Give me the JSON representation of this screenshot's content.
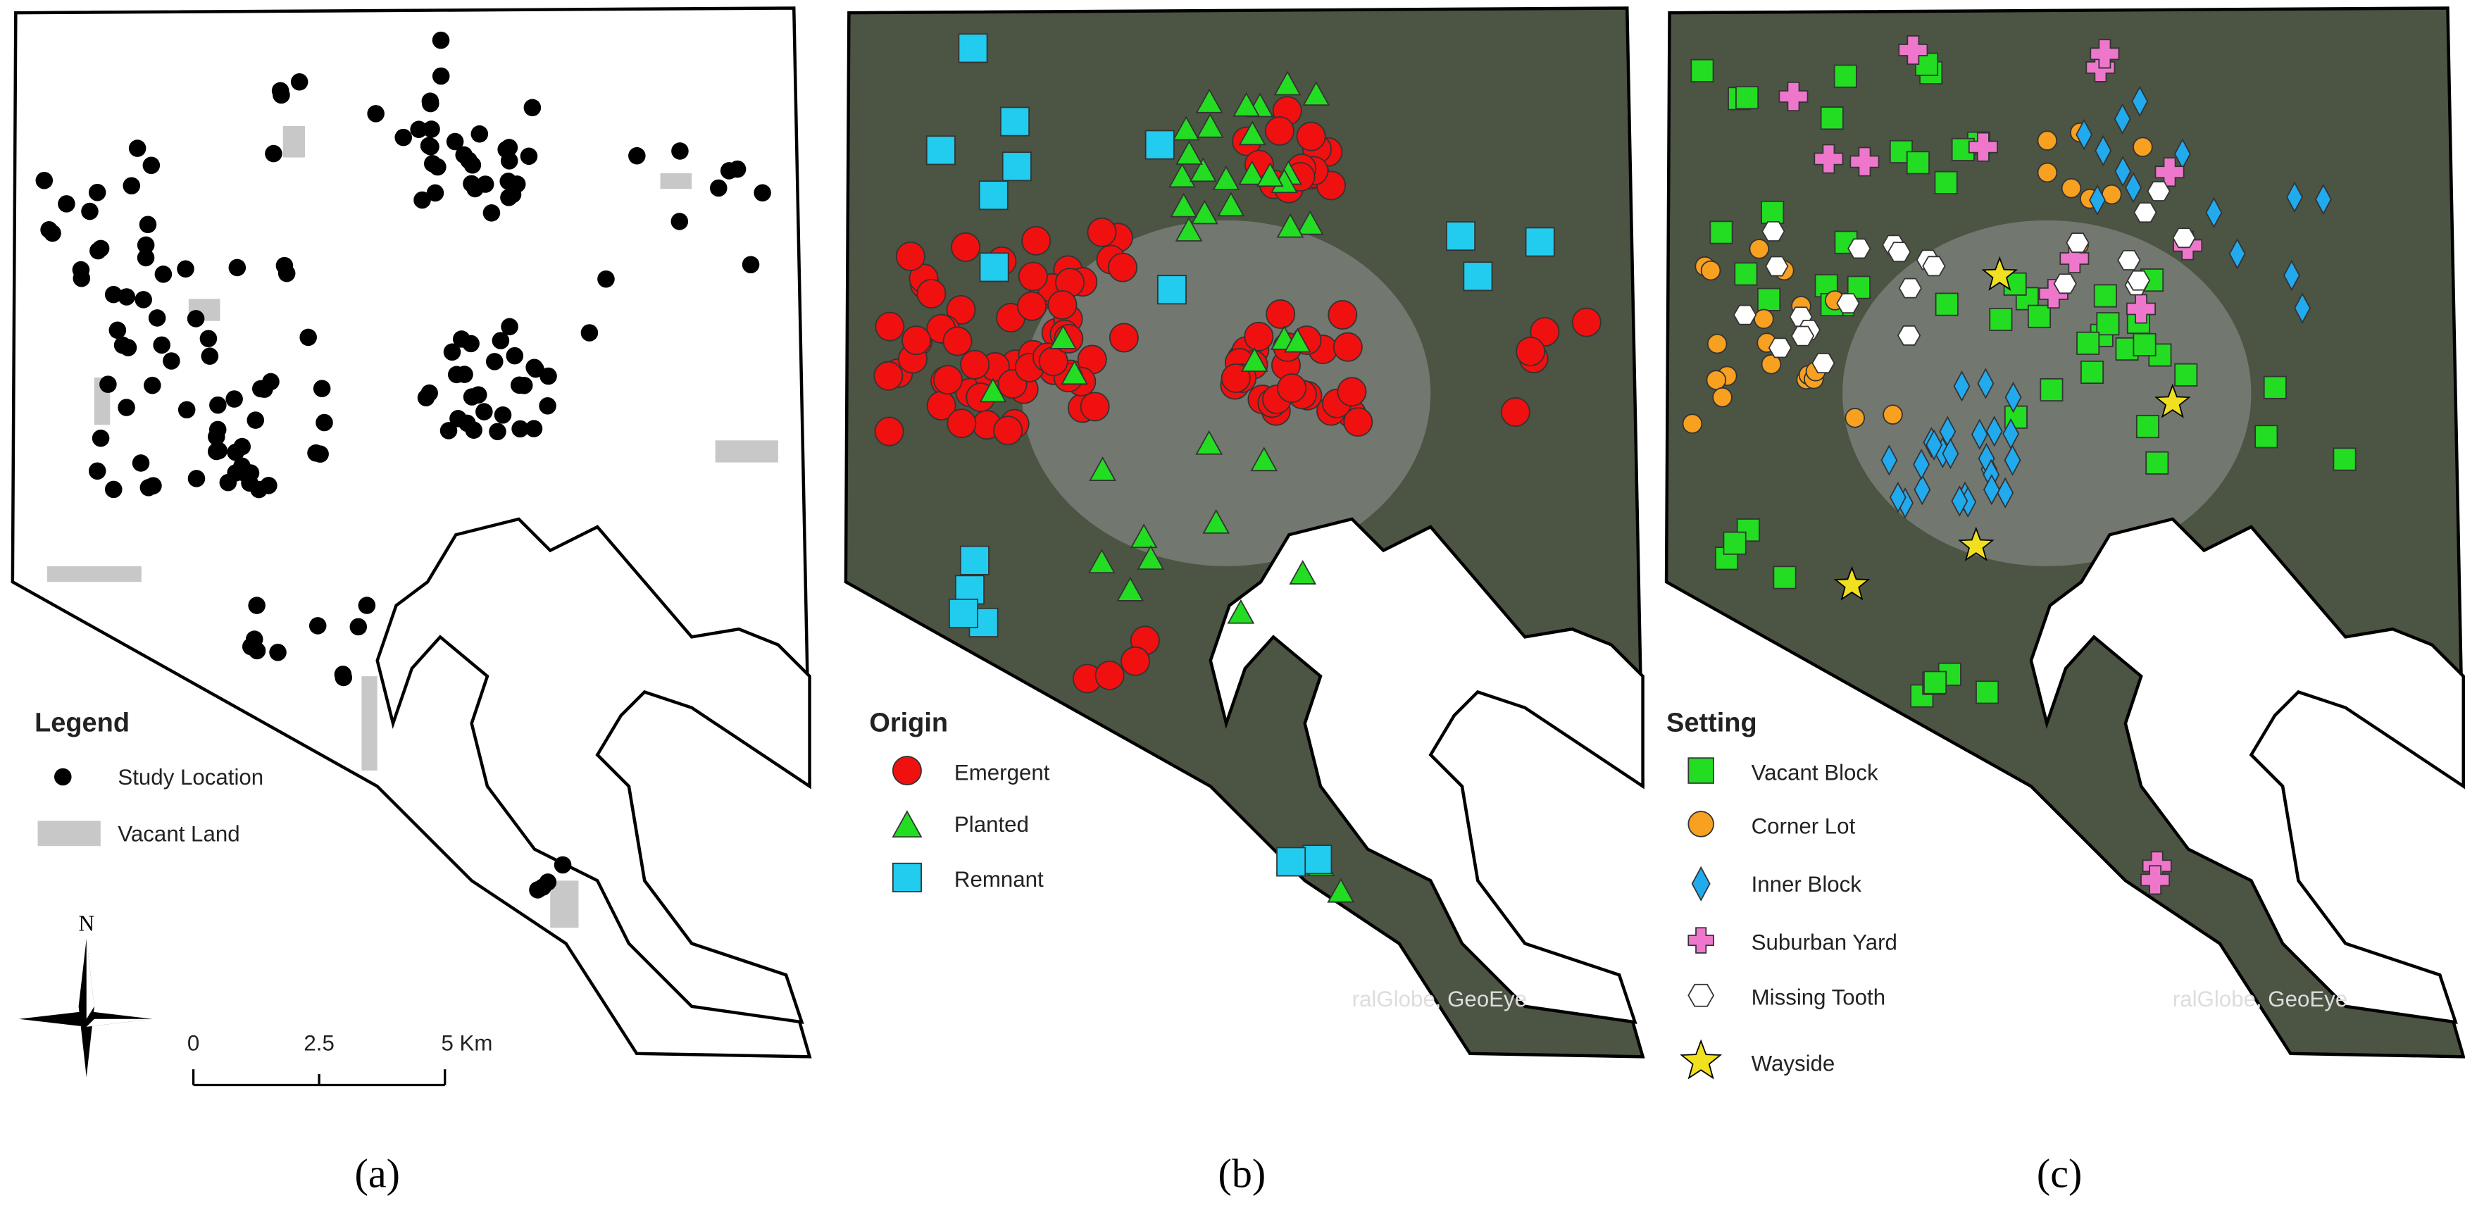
{
  "panels": [
    {
      "caption": "(a)",
      "legend": {
        "title": "Legend",
        "items": [
          "Study Location",
          "Vacant Land"
        ]
      },
      "scale_bar": {
        "ticks": [
          "0",
          "2.5",
          "5 Km"
        ]
      },
      "north_label": "N"
    },
    {
      "caption": "(b)",
      "legend": {
        "title": "Origin",
        "items": [
          "Emergent",
          "Planted",
          "Remnant"
        ]
      },
      "attribution": "ralGlobe, GeoEye"
    },
    {
      "caption": "(c)",
      "legend": {
        "title": "Setting",
        "items": [
          "Vacant Block",
          "Corner Lot",
          "Inner Block",
          "Suburban Yard",
          "Missing Tooth",
          "Wayside"
        ]
      },
      "attribution": "ralGlobe, GeoEye"
    }
  ]
}
